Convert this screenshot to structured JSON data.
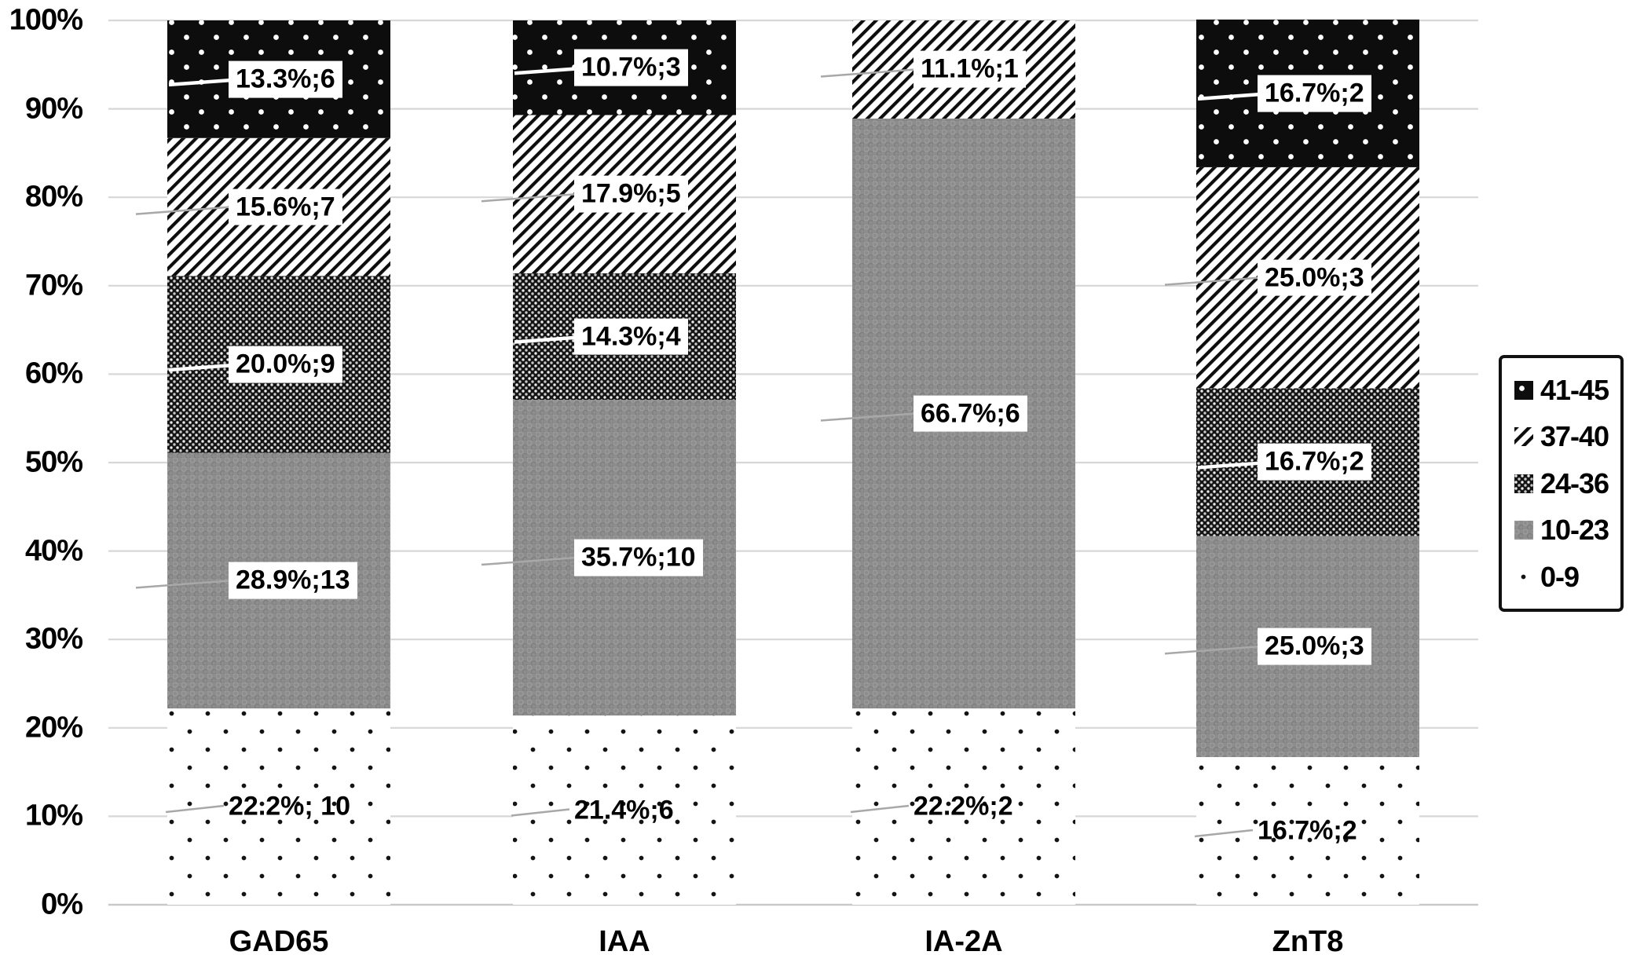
{
  "colors": {
    "background": "#ffffff",
    "gridline": "#d7d7d7",
    "baseline": "#c9c9c9",
    "text": "#000000",
    "label_box": "#ffffff",
    "leader_gray": "#a8a8a8",
    "leader_white": "#ffffff",
    "pattern_black": "#0d0d0d",
    "pattern_gray": "#8d8d8d"
  },
  "legend_title": "",
  "chart_data": {
    "type": "bar",
    "stacked": true,
    "units": "percent",
    "title": "",
    "xlabel": "",
    "ylabel": "",
    "grid": true,
    "categories": [
      "GAD65",
      "IAA",
      "IA-2A",
      "ZnT8"
    ],
    "series": [
      {
        "name": "0-9",
        "pattern": "sparse-dots",
        "label_box": false,
        "values": [
          22.2,
          21.4,
          22.2,
          16.7
        ],
        "counts": [
          10,
          6,
          2,
          2
        ],
        "labels": [
          "22.2%; 10",
          "21.4%;6",
          "22.2%;2",
          "16.7%;2"
        ]
      },
      {
        "name": "10-23",
        "pattern": "gray-texture",
        "label_box": true,
        "values": [
          28.9,
          35.7,
          66.7,
          25.0
        ],
        "counts": [
          13,
          10,
          6,
          3
        ],
        "labels": [
          "28.9%;13",
          "35.7%;10",
          "66.7%;6",
          "25.0%;3"
        ]
      },
      {
        "name": "24-36",
        "pattern": "dense-weave",
        "label_box": true,
        "values": [
          20.0,
          14.3,
          0,
          16.7
        ],
        "counts": [
          9,
          4,
          null,
          2
        ],
        "labels": [
          "20.0%;9",
          "14.3%;4",
          null,
          "16.7%;2"
        ]
      },
      {
        "name": "37-40",
        "pattern": "diagonal-hatch",
        "label_box": true,
        "values": [
          15.6,
          17.9,
          11.1,
          25.0
        ],
        "counts": [
          7,
          5,
          1,
          3
        ],
        "labels": [
          "15.6%;7",
          "17.9%;5",
          "11.1%;1",
          "25.0%;3"
        ]
      },
      {
        "name": "41-45",
        "pattern": "black-dots",
        "label_box": true,
        "values": [
          13.3,
          10.7,
          0,
          16.7
        ],
        "counts": [
          6,
          3,
          null,
          2
        ],
        "labels": [
          "13.3%;6",
          "10.7%;3",
          null,
          "16.7%;2"
        ]
      }
    ],
    "y_axis": {
      "min": 0,
      "max": 100,
      "ticks": [
        "0%",
        "10%",
        "20%",
        "30%",
        "40%",
        "50%",
        "60%",
        "70%",
        "80%",
        "90%",
        "100%"
      ]
    },
    "legend": {
      "position": "right",
      "items": [
        "41-45",
        "37-40",
        "24-36",
        "10-23",
        "0-9"
      ]
    }
  }
}
